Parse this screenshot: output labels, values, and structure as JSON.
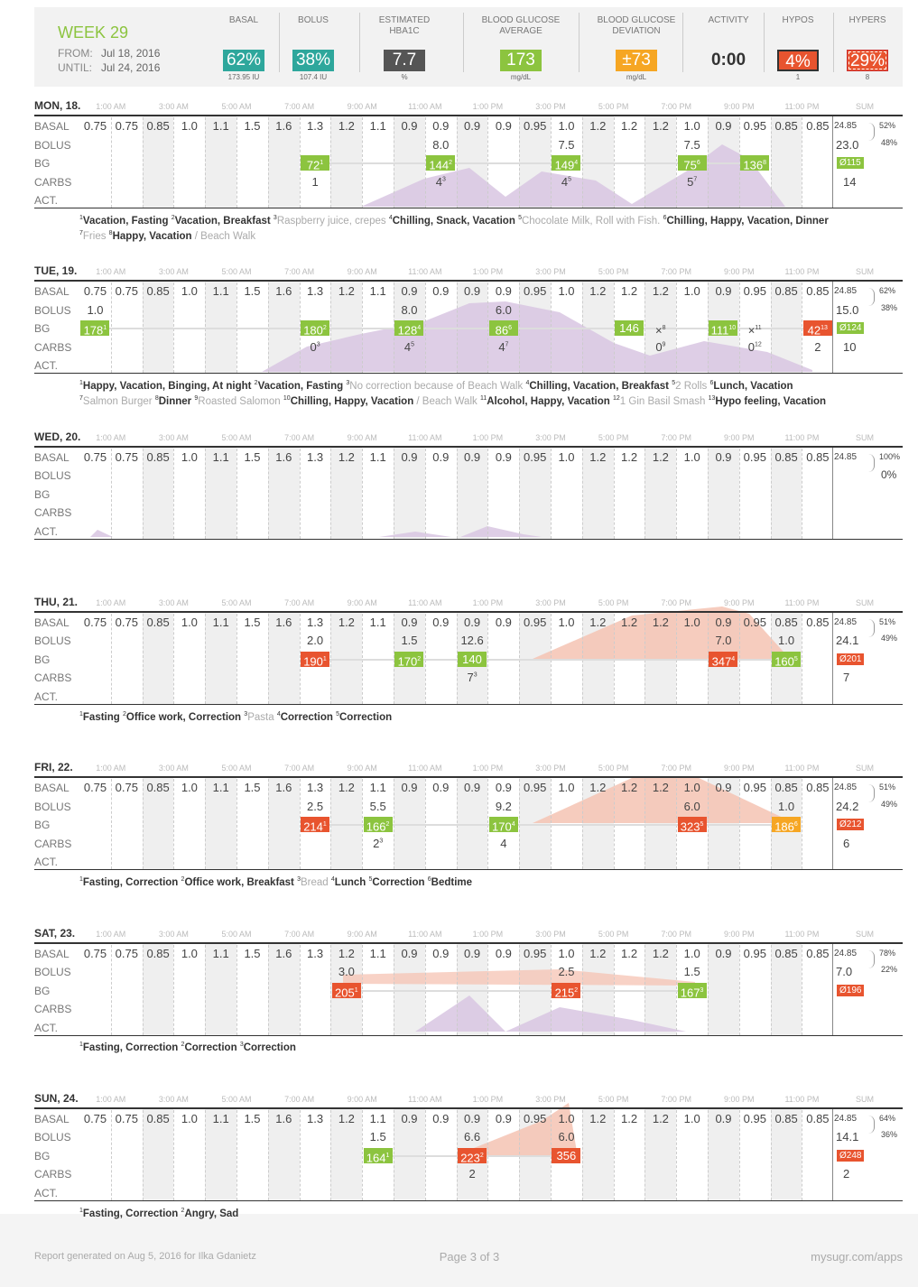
{
  "header": {
    "week": "WEEK 29",
    "from_label": "FROM:",
    "from": "Jul 18, 2016",
    "until_label": "UNTIL:",
    "until": "Jul 24, 2016",
    "stats": [
      {
        "label": "BASAL",
        "value": "62%",
        "sub": "173.95 IU",
        "color": "#2ea79c"
      },
      {
        "label": "BOLUS",
        "value": "38%",
        "sub": "107.4 IU",
        "color": "#2ea79c"
      },
      {
        "label": "ESTIMATED HBA1C",
        "value": "7.7",
        "sub": "%",
        "color": "#555555"
      },
      {
        "label": "BLOOD GLUCOSE AVERAGE",
        "value": "173",
        "sub": "mg/dL",
        "color": "#8cc43f"
      },
      {
        "label": "BLOOD GLUCOSE DEVIATION",
        "value": "±73",
        "sub": "mg/dL",
        "color": "#f6a623"
      },
      {
        "label": "ACTIVITY",
        "value": "0:00"
      },
      {
        "label": "HYPOS",
        "value": "4%",
        "sub": "1",
        "color": "#e8542f",
        "border": "solid"
      },
      {
        "label": "HYPERS",
        "value": "29%",
        "sub": "8",
        "color": "#e8542f",
        "border": "dashed"
      }
    ]
  },
  "time_labels": [
    "1:00 AM",
    "3:00 AM",
    "5:00 AM",
    "7:00 AM",
    "9:00 AM",
    "11:00 AM",
    "1:00 PM",
    "3:00 PM",
    "5:00 PM",
    "7:00 PM",
    "9:00 PM",
    "11:00 PM"
  ],
  "sum_label": "SUM",
  "row_labels": [
    "BASAL",
    "BOLUS",
    "BG",
    "CARBS",
    "ACT."
  ],
  "basal_rates": [
    "0.75",
    "0.75",
    "0.85",
    "1.0",
    "1.1",
    "1.5",
    "1.6",
    "1.3",
    "1.2",
    "1.1",
    "0.9",
    "0.9",
    "0.9",
    "0.9",
    "0.95",
    "1.0",
    "1.2",
    "1.2",
    "1.2",
    "1.0",
    "0.9",
    "0.95",
    "0.85",
    "0.85"
  ],
  "days": [
    {
      "name": "MON, 18.",
      "bolus": [
        {
          "hour": 11,
          "text": "8.0"
        },
        {
          "hour": 15,
          "text": "7.5"
        },
        {
          "hour": 19,
          "text": "7.5"
        }
      ],
      "bg": [
        {
          "hour": 7,
          "text": "72",
          "sup": "1",
          "status": "in-range"
        },
        {
          "hour": 11,
          "text": "144",
          "sup": "2",
          "status": "in-range"
        },
        {
          "hour": 15,
          "text": "149",
          "sup": "4",
          "status": "in-range"
        },
        {
          "hour": 19,
          "text": "75",
          "sup": "6",
          "status": "in-range"
        },
        {
          "hour": 21,
          "text": "136",
          "sup": "8",
          "status": "in-range"
        }
      ],
      "carbs": [
        {
          "hour": 7,
          "text": "1"
        },
        {
          "hour": 11,
          "text": "4",
          "sup": "3"
        },
        {
          "hour": 15,
          "text": "4",
          "sup": "5"
        },
        {
          "hour": 19,
          "text": "5",
          "sup": "7"
        }
      ],
      "sum": {
        "basal": "24.85",
        "bolus": "23.0",
        "bg": "Ø115",
        "bg_status": "in-range",
        "carbs": "14",
        "basal_pct": "52%",
        "bolus_pct": "48%"
      },
      "notes": [
        {
          "n": "1",
          "text": "Vacation, Fasting"
        },
        {
          "n": "2",
          "text": "Vacation, Breakfast"
        },
        {
          "n": "3",
          "muted": "Raspberry juice, crepes"
        },
        {
          "n": "4",
          "text": "Chilling, Snack, Vacation"
        },
        {
          "n": "5",
          "muted": "Chocolate Milk, Roll with Fish."
        },
        {
          "n": "6",
          "text": "Chilling, Happy, Vacation, Dinner"
        },
        {
          "n": "7",
          "muted": "Fries"
        },
        {
          "n": "8",
          "text": "Happy, Vacation",
          "muted": "/ Beach Walk"
        }
      ]
    },
    {
      "name": "TUE, 19.",
      "bolus": [
        {
          "hour": 0,
          "text": "1.0"
        },
        {
          "hour": 10,
          "text": "8.0"
        },
        {
          "hour": 13,
          "text": "6.0"
        }
      ],
      "bg": [
        {
          "hour": 0,
          "text": "178",
          "sup": "1",
          "status": "in-range"
        },
        {
          "hour": 7,
          "text": "180",
          "sup": "2",
          "status": "in-range"
        },
        {
          "hour": 10,
          "text": "128",
          "sup": "4",
          "status": "in-range"
        },
        {
          "hour": 13,
          "text": "86",
          "sup": "6",
          "status": "in-range"
        },
        {
          "hour": 17,
          "text": "146",
          "status": "in-range"
        },
        {
          "hour": 18,
          "text": "×",
          "sup": "8",
          "status": "none"
        },
        {
          "hour": 20,
          "text": "111",
          "sup": "10",
          "status": "in-range"
        },
        {
          "hour": 21,
          "text": "×",
          "sup": "11",
          "status": "none"
        },
        {
          "hour": 23,
          "text": "42",
          "sup": "13",
          "status": "out-of-range"
        }
      ],
      "carbs": [
        {
          "hour": 7,
          "text": "0",
          "sup": "3"
        },
        {
          "hour": 10,
          "text": "4",
          "sup": "5"
        },
        {
          "hour": 13,
          "text": "4",
          "sup": "7"
        },
        {
          "hour": 18,
          "text": "0",
          "sup": "9"
        },
        {
          "hour": 21,
          "text": "0",
          "sup": "12"
        },
        {
          "hour": 23,
          "text": "2"
        }
      ],
      "sum": {
        "basal": "24.85",
        "bolus": "15.0",
        "bg": "Ø124",
        "bg_status": "in-range",
        "carbs": "10",
        "basal_pct": "62%",
        "bolus_pct": "38%"
      },
      "notes": [
        {
          "n": "1",
          "text": "Happy, Vacation, Binging, At night"
        },
        {
          "n": "2",
          "text": "Vacation, Fasting"
        },
        {
          "n": "3",
          "muted": "No correction because of Beach Walk"
        },
        {
          "n": "4",
          "text": "Chilling, Vacation, Breakfast"
        },
        {
          "n": "5",
          "muted": "2 Rolls"
        },
        {
          "n": "6",
          "text": "Lunch, Vacation"
        },
        {
          "n": "7",
          "muted": "Salmon Burger"
        },
        {
          "n": "8",
          "text": "Dinner"
        },
        {
          "n": "9",
          "muted": "Roasted Salomon"
        },
        {
          "n": "10",
          "text": "Chilling, Happy, Vacation",
          "muted": "/ Beach Walk"
        },
        {
          "n": "11",
          "text": "Alcohol, Happy, Vacation"
        },
        {
          "n": "12",
          "muted": "1 Gin Basil Smash"
        },
        {
          "n": "13",
          "text": "Hypo feeling, Vacation"
        }
      ]
    },
    {
      "name": "WED, 20.",
      "bolus": [],
      "bg": [],
      "carbs": [],
      "sum": {
        "basal": "24.85",
        "basal_pct": "100%",
        "bolus_pct": "0%"
      },
      "notes": []
    },
    {
      "name": "THU, 21.",
      "bolus": [
        {
          "hour": 7,
          "text": "2.0"
        },
        {
          "hour": 10,
          "text": "1.5"
        },
        {
          "hour": 12,
          "text": "12.6"
        },
        {
          "hour": 20,
          "text": "7.0"
        },
        {
          "hour": 22,
          "text": "1.0"
        }
      ],
      "bg": [
        {
          "hour": 7,
          "text": "190",
          "sup": "1",
          "status": "out-of-range"
        },
        {
          "hour": 10,
          "text": "170",
          "sup": "2",
          "status": "in-range"
        },
        {
          "hour": 12,
          "text": "140",
          "status": "in-range"
        },
        {
          "hour": 20,
          "text": "347",
          "sup": "4",
          "status": "out-of-range"
        },
        {
          "hour": 22,
          "text": "160",
          "sup": "5",
          "status": "in-range"
        }
      ],
      "carbs": [
        {
          "hour": 12,
          "text": "7",
          "sup": "3"
        }
      ],
      "sum": {
        "basal": "24.85",
        "bolus": "24.1",
        "bg": "Ø201",
        "bg_status": "out-of-range",
        "carbs": "7",
        "basal_pct": "51%",
        "bolus_pct": "49%"
      },
      "notes": [
        {
          "n": "1",
          "text": "Fasting"
        },
        {
          "n": "2",
          "text": "Office work, Correction"
        },
        {
          "n": "3",
          "muted": "Pasta"
        },
        {
          "n": "4",
          "text": "Correction"
        },
        {
          "n": "5",
          "text": "Correction"
        }
      ]
    },
    {
      "name": "FRI, 22.",
      "bolus": [
        {
          "hour": 7,
          "text": "2.5"
        },
        {
          "hour": 9,
          "text": "5.5"
        },
        {
          "hour": 13,
          "text": "9.2"
        },
        {
          "hour": 19,
          "text": "6.0"
        },
        {
          "hour": 22,
          "text": "1.0"
        }
      ],
      "bg": [
        {
          "hour": 7,
          "text": "214",
          "sup": "1",
          "status": "out-of-range"
        },
        {
          "hour": 9,
          "text": "166",
          "sup": "2",
          "status": "in-range"
        },
        {
          "hour": 13,
          "text": "170",
          "sup": "4",
          "status": "in-range"
        },
        {
          "hour": 19,
          "text": "323",
          "sup": "5",
          "status": "out-of-range"
        },
        {
          "hour": 22,
          "text": "186",
          "sup": "6",
          "status": "borderline"
        }
      ],
      "carbs": [
        {
          "hour": 9,
          "text": "2",
          "sup": "3"
        },
        {
          "hour": 13,
          "text": "4"
        }
      ],
      "sum": {
        "basal": "24.85",
        "bolus": "24.2",
        "bg": "Ø212",
        "bg_status": "out-of-range",
        "carbs": "6",
        "basal_pct": "51%",
        "bolus_pct": "49%"
      },
      "notes": [
        {
          "n": "1",
          "text": "Fasting, Correction"
        },
        {
          "n": "2",
          "text": "Office work, Breakfast"
        },
        {
          "n": "3",
          "muted": "Bread"
        },
        {
          "n": "4",
          "text": "Lunch"
        },
        {
          "n": "5",
          "text": "Correction"
        },
        {
          "n": "6",
          "text": "Bedtime"
        }
      ]
    },
    {
      "name": "SAT, 23.",
      "bolus": [
        {
          "hour": 8,
          "text": "3.0"
        },
        {
          "hour": 15,
          "text": "2.5"
        },
        {
          "hour": 19,
          "text": "1.5"
        }
      ],
      "bg": [
        {
          "hour": 8,
          "text": "205",
          "sup": "1",
          "status": "out-of-range"
        },
        {
          "hour": 15,
          "text": "215",
          "sup": "2",
          "status": "out-of-range"
        },
        {
          "hour": 19,
          "text": "167",
          "sup": "3",
          "status": "in-range"
        }
      ],
      "carbs": [],
      "sum": {
        "basal": "24.85",
        "bolus": "7.0",
        "bg": "Ø196",
        "bg_status": "out-of-range",
        "basal_pct": "78%",
        "bolus_pct": "22%"
      },
      "notes": [
        {
          "n": "1",
          "text": "Fasting, Correction"
        },
        {
          "n": "2",
          "text": "Correction"
        },
        {
          "n": "3",
          "text": "Correction"
        }
      ]
    },
    {
      "name": "SUN, 24.",
      "bolus": [
        {
          "hour": 9,
          "text": "1.5"
        },
        {
          "hour": 12,
          "text": "6.6"
        },
        {
          "hour": 15,
          "text": "6.0"
        }
      ],
      "bg": [
        {
          "hour": 9,
          "text": "164",
          "sup": "1",
          "status": "in-range"
        },
        {
          "hour": 12,
          "text": "223",
          "sup": "2",
          "status": "out-of-range"
        },
        {
          "hour": 15,
          "text": "356",
          "status": "out-of-range"
        }
      ],
      "carbs": [
        {
          "hour": 12,
          "text": "2"
        }
      ],
      "sum": {
        "basal": "24.85",
        "bolus": "14.1",
        "bg": "Ø248",
        "bg_status": "out-of-range",
        "carbs": "2",
        "basal_pct": "64%",
        "bolus_pct": "36%"
      },
      "notes": [
        {
          "n": "1",
          "text": "Fasting, Correction"
        },
        {
          "n": "2",
          "text": "Angry, Sad"
        }
      ]
    }
  ],
  "footer": {
    "left": "Report generated on Aug 5, 2016 for Ilka Gdanietz",
    "center": "Page 3 of 3",
    "right": "mysugr.com/apps"
  }
}
